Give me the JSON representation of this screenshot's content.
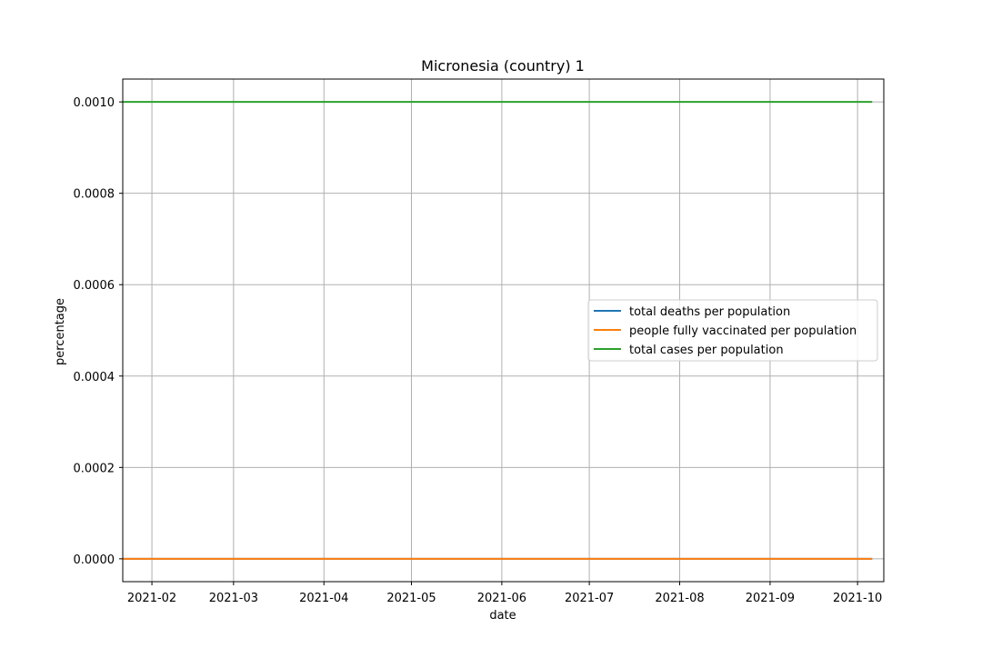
{
  "chart_data": {
    "type": "line",
    "title": "Micronesia (country) 1",
    "xlabel": "date",
    "ylabel": "percentage",
    "x_range": [
      "2021-01-22",
      "2021-10-10"
    ],
    "ylim": [
      -5e-05,
      0.00105
    ],
    "x_ticks": [
      "2021-02",
      "2021-03",
      "2021-04",
      "2021-05",
      "2021-06",
      "2021-07",
      "2021-08",
      "2021-09",
      "2021-10"
    ],
    "x_tick_dates": [
      "2021-02-01",
      "2021-03-01",
      "2021-04-01",
      "2021-05-01",
      "2021-06-01",
      "2021-07-01",
      "2021-08-01",
      "2021-09-01",
      "2021-10-01"
    ],
    "y_ticks": [
      0.0,
      0.0002,
      0.0004,
      0.0006,
      0.0008,
      0.001
    ],
    "y_tick_labels": [
      "0.0000",
      "0.0002",
      "0.0004",
      "0.0006",
      "0.0008",
      "0.0010"
    ],
    "grid": true,
    "legend_position": "center-right",
    "series": [
      {
        "name": "total deaths per population",
        "color": "#1f77b4",
        "x": [
          "2021-01-22",
          "2021-10-06"
        ],
        "y": [
          0.0,
          0.0
        ]
      },
      {
        "name": "people fully vaccinated per population",
        "color": "#ff7f0e",
        "x": [
          "2021-01-22",
          "2021-10-06"
        ],
        "y": [
          0.0,
          0.0
        ]
      },
      {
        "name": "total cases per population",
        "color": "#2ca02c",
        "x": [
          "2021-01-22",
          "2021-10-06"
        ],
        "y": [
          0.001,
          0.001
        ]
      }
    ]
  }
}
